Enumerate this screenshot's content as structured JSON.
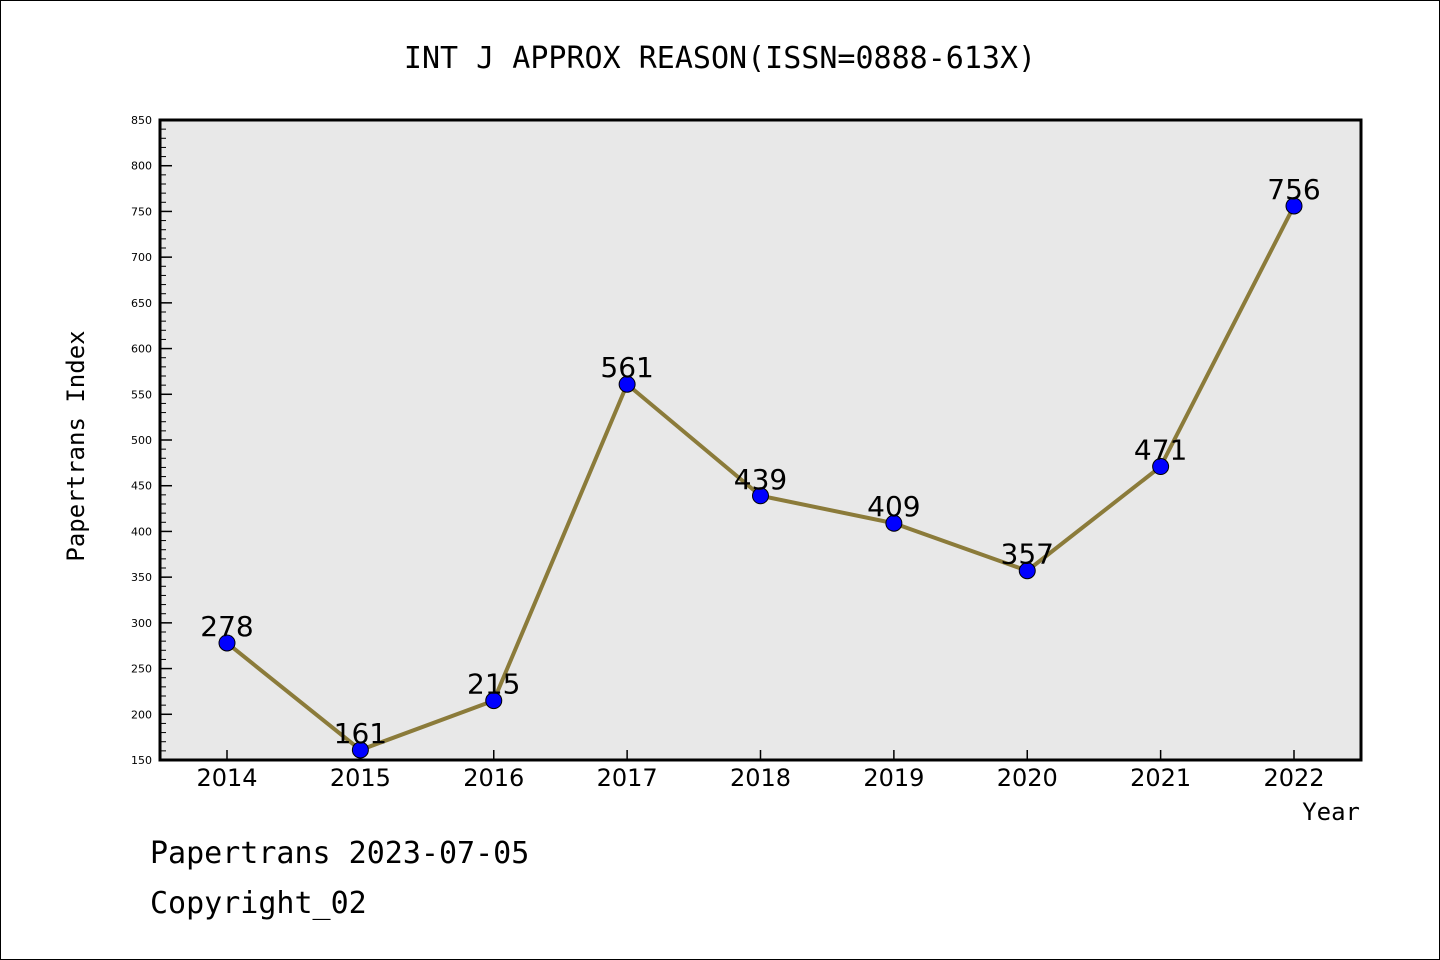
{
  "chart_data": {
    "type": "line",
    "title": "INT J APPROX REASON(ISSN=0888-613X)",
    "xlabel": "Year",
    "ylabel": "Papertrans Index",
    "categories": [
      "2014",
      "2015",
      "2016",
      "2017",
      "2018",
      "2019",
      "2020",
      "2021",
      "2022"
    ],
    "series": [
      {
        "values": [
          278,
          161,
          215,
          561,
          439,
          409,
          357,
          471,
          756
        ]
      }
    ],
    "data_labels": [
      "278",
      "161",
      "215",
      "561",
      "439",
      "409",
      "357",
      "471",
      "756"
    ],
    "ylim": [
      150,
      850
    ],
    "yticks": [
      "150",
      "200",
      "250",
      "300",
      "350",
      "400",
      "450",
      "500",
      "550",
      "600",
      "650",
      "700",
      "750",
      "800",
      "850"
    ],
    "grid": false,
    "legend": "none",
    "line_color": "#8b7b3a",
    "marker_color": "#0000ff",
    "plot_background": "#e8e8e8"
  },
  "footer": {
    "stamp": "Papertrans 2023-07-05",
    "copyright": "Copyright_02"
  }
}
